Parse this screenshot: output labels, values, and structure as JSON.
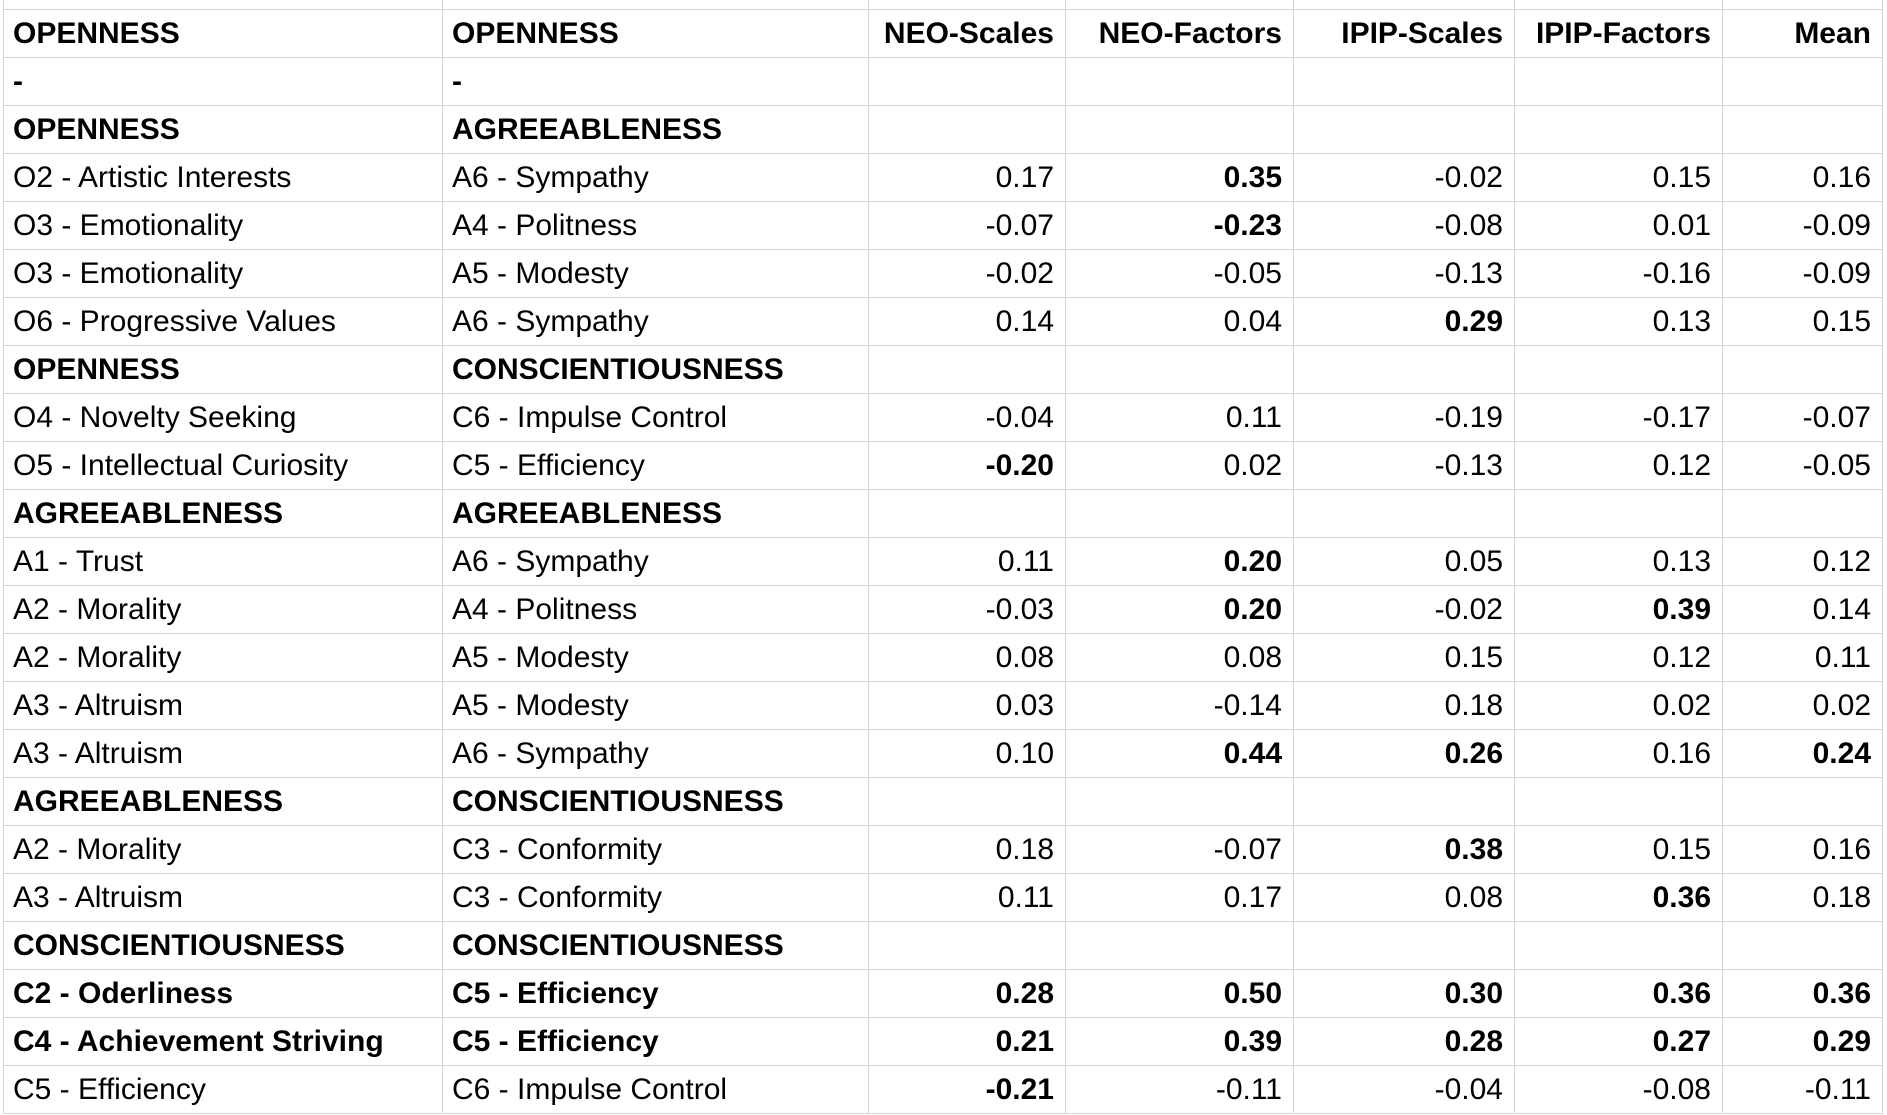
{
  "colors": {
    "background": "#ffffff",
    "gridline": "#d4d4d4",
    "text": "#000000"
  },
  "header": [
    "OPENNESS",
    "OPENNESS",
    "NEO-Scales",
    "NEO-Factors",
    "IPIP-Scales",
    "IPIP-Factors",
    "Mean"
  ],
  "rows": [
    {
      "kind": "dash",
      "trait1": "-",
      "trait2": "-",
      "bold_traits": true,
      "values": [
        "",
        "",
        "",
        "",
        ""
      ],
      "bold_values": [
        false,
        false,
        false,
        false,
        false
      ]
    },
    {
      "kind": "section",
      "trait1": "OPENNESS",
      "trait2": "AGREEABLENESS",
      "bold_traits": true,
      "values": [
        "",
        "",
        "",
        "",
        ""
      ],
      "bold_values": [
        false,
        false,
        false,
        false,
        false
      ]
    },
    {
      "kind": "data",
      "trait1": "O2 - Artistic Interests",
      "trait2": "A6 - Sympathy",
      "bold_traits": false,
      "values": [
        "0.17",
        "0.35",
        "-0.02",
        "0.15",
        "0.16"
      ],
      "bold_values": [
        false,
        true,
        false,
        false,
        false
      ]
    },
    {
      "kind": "data",
      "trait1": "O3 - Emotionality",
      "trait2": "A4 - Politness",
      "bold_traits": false,
      "values": [
        "-0.07",
        "-0.23",
        "-0.08",
        "0.01",
        "-0.09"
      ],
      "bold_values": [
        false,
        true,
        false,
        false,
        false
      ]
    },
    {
      "kind": "data",
      "trait1": "O3 - Emotionality",
      "trait2": "A5 - Modesty",
      "bold_traits": false,
      "values": [
        "-0.02",
        "-0.05",
        "-0.13",
        "-0.16",
        "-0.09"
      ],
      "bold_values": [
        false,
        false,
        false,
        false,
        false
      ]
    },
    {
      "kind": "data",
      "trait1": "O6 - Progressive Values",
      "trait2": "A6 - Sympathy",
      "bold_traits": false,
      "values": [
        "0.14",
        "0.04",
        "0.29",
        "0.13",
        "0.15"
      ],
      "bold_values": [
        false,
        false,
        true,
        false,
        false
      ]
    },
    {
      "kind": "section",
      "trait1": "OPENNESS",
      "trait2": "CONSCIENTIOUSNESS",
      "bold_traits": true,
      "values": [
        "",
        "",
        "",
        "",
        ""
      ],
      "bold_values": [
        false,
        false,
        false,
        false,
        false
      ]
    },
    {
      "kind": "data",
      "trait1": "O4 - Novelty Seeking",
      "trait2": "C6 - Impulse Control",
      "bold_traits": false,
      "values": [
        "-0.04",
        "0.11",
        "-0.19",
        "-0.17",
        "-0.07"
      ],
      "bold_values": [
        false,
        false,
        false,
        false,
        false
      ]
    },
    {
      "kind": "data",
      "trait1": "O5 - Intellectual Curiosity",
      "trait2": "C5 - Efficiency",
      "bold_traits": false,
      "values": [
        "-0.20",
        "0.02",
        "-0.13",
        "0.12",
        "-0.05"
      ],
      "bold_values": [
        true,
        false,
        false,
        false,
        false
      ]
    },
    {
      "kind": "section",
      "trait1": "AGREEABLENESS",
      "trait2": "AGREEABLENESS",
      "bold_traits": true,
      "values": [
        "",
        "",
        "",
        "",
        ""
      ],
      "bold_values": [
        false,
        false,
        false,
        false,
        false
      ]
    },
    {
      "kind": "data",
      "trait1": "A1 - Trust",
      "trait2": "A6 - Sympathy",
      "bold_traits": false,
      "values": [
        "0.11",
        "0.20",
        "0.05",
        "0.13",
        "0.12"
      ],
      "bold_values": [
        false,
        true,
        false,
        false,
        false
      ]
    },
    {
      "kind": "data",
      "trait1": "A2 - Morality",
      "trait2": "A4 - Politness",
      "bold_traits": false,
      "values": [
        "-0.03",
        "0.20",
        "-0.02",
        "0.39",
        "0.14"
      ],
      "bold_values": [
        false,
        true,
        false,
        true,
        false
      ]
    },
    {
      "kind": "data",
      "trait1": "A2 - Morality",
      "trait2": "A5 - Modesty",
      "bold_traits": false,
      "values": [
        "0.08",
        "0.08",
        "0.15",
        "0.12",
        "0.11"
      ],
      "bold_values": [
        false,
        false,
        false,
        false,
        false
      ]
    },
    {
      "kind": "data",
      "trait1": "A3 - Altruism",
      "trait2": "A5 - Modesty",
      "bold_traits": false,
      "values": [
        "0.03",
        "-0.14",
        "0.18",
        "0.02",
        "0.02"
      ],
      "bold_values": [
        false,
        false,
        false,
        false,
        false
      ]
    },
    {
      "kind": "data",
      "trait1": "A3 - Altruism",
      "trait2": "A6 - Sympathy",
      "bold_traits": false,
      "values": [
        "0.10",
        "0.44",
        "0.26",
        "0.16",
        "0.24"
      ],
      "bold_values": [
        false,
        true,
        true,
        false,
        true
      ]
    },
    {
      "kind": "section",
      "trait1": "AGREEABLENESS",
      "trait2": "CONSCIENTIOUSNESS",
      "bold_traits": true,
      "values": [
        "",
        "",
        "",
        "",
        ""
      ],
      "bold_values": [
        false,
        false,
        false,
        false,
        false
      ]
    },
    {
      "kind": "data",
      "trait1": "A2 - Morality",
      "trait2": "C3 - Conformity",
      "bold_traits": false,
      "values": [
        "0.18",
        "-0.07",
        "0.38",
        "0.15",
        "0.16"
      ],
      "bold_values": [
        false,
        false,
        true,
        false,
        false
      ]
    },
    {
      "kind": "data",
      "trait1": "A3 - Altruism",
      "trait2": "C3 - Conformity",
      "bold_traits": false,
      "values": [
        "0.11",
        "0.17",
        "0.08",
        "0.36",
        "0.18"
      ],
      "bold_values": [
        false,
        false,
        false,
        true,
        false
      ]
    },
    {
      "kind": "section",
      "trait1": "CONSCIENTIOUSNESS",
      "trait2": "CONSCIENTIOUSNESS",
      "bold_traits": true,
      "values": [
        "",
        "",
        "",
        "",
        ""
      ],
      "bold_values": [
        false,
        false,
        false,
        false,
        false
      ]
    },
    {
      "kind": "data",
      "trait1": "C2 - Oderliness",
      "trait2": "C5 - Efficiency",
      "bold_traits": true,
      "values": [
        "0.28",
        "0.50",
        "0.30",
        "0.36",
        "0.36"
      ],
      "bold_values": [
        true,
        true,
        true,
        true,
        true
      ]
    },
    {
      "kind": "data",
      "trait1": "C4 - Achievement Striving",
      "trait2": "C5 - Efficiency",
      "bold_traits": true,
      "values": [
        "0.21",
        "0.39",
        "0.28",
        "0.27",
        "0.29"
      ],
      "bold_values": [
        true,
        true,
        true,
        true,
        true
      ]
    },
    {
      "kind": "data",
      "trait1": "C5 - Efficiency",
      "trait2": "C6 - Impulse Control",
      "bold_traits": false,
      "values": [
        "-0.21",
        "-0.11",
        "-0.04",
        "-0.08",
        "-0.11"
      ],
      "bold_values": [
        true,
        false,
        false,
        false,
        false
      ]
    }
  ]
}
